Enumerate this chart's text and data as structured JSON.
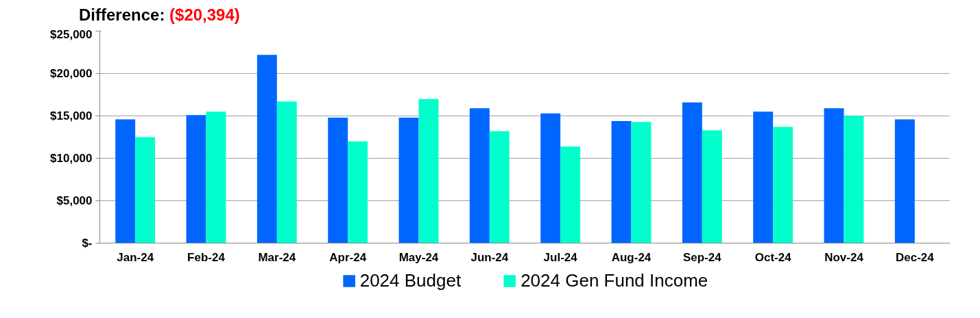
{
  "chart_data": {
    "type": "bar",
    "title": "Difference:",
    "annotations": [
      "($20,394)"
    ],
    "categories": [
      "Jan-24",
      "Feb-24",
      "Mar-24",
      "Apr-24",
      "May-24",
      "Jun-24",
      "Jul-24",
      "Aug-24",
      "Sep-24",
      "Oct-24",
      "Nov-24",
      "Dec-24"
    ],
    "series": [
      {
        "name": "2024 Budget",
        "color": "#0066ff",
        "values": [
          14600,
          15100,
          22200,
          14800,
          14800,
          15900,
          15300,
          14400,
          16600,
          15500,
          15900,
          14600
        ]
      },
      {
        "name": "2024 Gen Fund Income",
        "color": "#00ffcc",
        "values": [
          12500,
          15500,
          16700,
          12000,
          17000,
          13200,
          11400,
          14300,
          13300,
          13700,
          15000,
          null
        ]
      }
    ],
    "ylim": [
      0,
      25000
    ],
    "yticks": [
      {
        "value": 0,
        "label": "$-"
      },
      {
        "value": 5000,
        "label": "$5,000"
      },
      {
        "value": 10000,
        "label": "$10,000"
      },
      {
        "value": 15000,
        "label": "$15,000"
      },
      {
        "value": 20000,
        "label": "$20,000"
      },
      {
        "value": 25000,
        "label": "$25,000"
      }
    ],
    "grid": "y",
    "legend": "bottom"
  }
}
